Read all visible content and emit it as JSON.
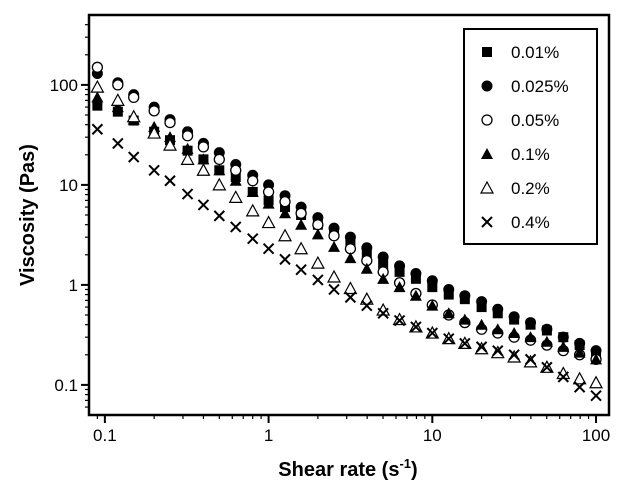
{
  "chart_data": {
    "type": "scatter",
    "xlabel": "Shear rate (s",
    "xlabel_superscript": "-1",
    "xlabel_suffix": ")",
    "ylabel": "Viscosity (Pas)",
    "xscale": "log",
    "yscale": "log",
    "xlim": [
      0.08,
      120
    ],
    "ylim": [
      0.05,
      500
    ],
    "x_ticks": [
      {
        "value": 0.1,
        "label": "0.1"
      },
      {
        "value": 1,
        "label": "1"
      },
      {
        "value": 10,
        "label": "10"
      },
      {
        "value": 100,
        "label": "100"
      }
    ],
    "y_ticks": [
      {
        "value": 0.1,
        "label": "0.1"
      },
      {
        "value": 1,
        "label": "1"
      },
      {
        "value": 10,
        "label": "10"
      },
      {
        "value": 100,
        "label": "100"
      }
    ],
    "legend_position": "top-right",
    "grid": false,
    "series": [
      {
        "name": "0.01%",
        "marker": "filled-square",
        "x": [
          0.09,
          0.12,
          0.15,
          0.2,
          0.25,
          0.32,
          0.4,
          0.5,
          0.63,
          0.8,
          1.0,
          1.26,
          1.58,
          2.0,
          2.51,
          3.16,
          3.98,
          5.01,
          6.31,
          7.94,
          10.0,
          12.6,
          15.8,
          20.0,
          25.1,
          31.6,
          39.8,
          50.1,
          63.1,
          79.4,
          100
        ],
        "y": [
          62,
          54,
          44,
          34,
          28,
          22,
          18,
          14,
          12,
          8.5,
          7,
          6,
          5,
          4,
          3.3,
          2.6,
          2.0,
          1.6,
          1.35,
          1.15,
          0.95,
          0.8,
          0.72,
          0.6,
          0.52,
          0.45,
          0.4,
          0.35,
          0.3,
          0.25,
          0.2
        ]
      },
      {
        "name": "0.025%",
        "marker": "filled-circle",
        "x": [
          0.09,
          0.12,
          0.15,
          0.2,
          0.25,
          0.32,
          0.4,
          0.5,
          0.63,
          0.8,
          1.0,
          1.26,
          1.58,
          2.0,
          2.51,
          3.16,
          3.98,
          5.01,
          6.31,
          7.94,
          10.0,
          12.6,
          15.8,
          20.0,
          25.1,
          31.6,
          39.8,
          50.1,
          63.1,
          79.4,
          100
        ],
        "y": [
          130,
          105,
          80,
          60,
          45,
          34,
          26,
          21,
          16,
          12.5,
          10,
          7.8,
          6,
          4.7,
          3.7,
          3.0,
          2.35,
          1.9,
          1.55,
          1.3,
          1.1,
          0.9,
          0.78,
          0.68,
          0.57,
          0.48,
          0.42,
          0.36,
          0.3,
          0.26,
          0.22
        ]
      },
      {
        "name": "0.05%",
        "marker": "open-circle",
        "x": [
          0.09,
          0.12,
          0.15,
          0.2,
          0.25,
          0.32,
          0.4,
          0.5,
          0.63,
          0.8,
          1.0,
          1.26,
          1.58,
          2.0,
          2.51,
          3.16,
          3.98,
          5.01,
          6.31,
          7.94,
          10.0,
          12.6,
          15.8,
          20.0,
          25.1,
          31.6,
          39.8,
          50.1,
          63.1,
          79.4,
          100
        ],
        "y": [
          150,
          100,
          75,
          55,
          42,
          31,
          24,
          18,
          14,
          11,
          8.5,
          6.8,
          5.2,
          4,
          3.1,
          2.3,
          1.75,
          1.35,
          1.05,
          0.82,
          0.63,
          0.5,
          0.42,
          0.36,
          0.33,
          0.3,
          0.28,
          0.25,
          0.22,
          0.2,
          0.18
        ]
      },
      {
        "name": "0.1%",
        "marker": "filled-triangle",
        "x": [
          0.09,
          0.12,
          0.15,
          0.2,
          0.25,
          0.32,
          0.4,
          0.5,
          0.63,
          0.8,
          1.0,
          1.26,
          1.58,
          2.0,
          2.51,
          3.16,
          3.98,
          5.01,
          6.31,
          7.94,
          10.0,
          12.6,
          15.8,
          20.0,
          25.1,
          31.6,
          39.8,
          50.1,
          63.1,
          79.4,
          100
        ],
        "y": [
          75,
          60,
          45,
          38,
          30,
          23,
          18,
          14,
          11,
          8.5,
          6.5,
          5.2,
          4,
          3.2,
          2.4,
          1.85,
          1.45,
          1.15,
          0.95,
          0.78,
          0.62,
          0.52,
          0.45,
          0.4,
          0.36,
          0.33,
          0.3,
          0.27,
          0.24,
          0.21,
          0.18
        ]
      },
      {
        "name": "0.2%",
        "marker": "open-triangle",
        "x": [
          0.09,
          0.12,
          0.15,
          0.2,
          0.25,
          0.32,
          0.4,
          0.5,
          0.63,
          0.8,
          1.0,
          1.26,
          1.58,
          2.0,
          2.51,
          3.16,
          3.98,
          5.01,
          6.31,
          7.94,
          10.0,
          12.6,
          15.8,
          20.0,
          25.1,
          31.6,
          39.8,
          50.1,
          63.1,
          79.4,
          100
        ],
        "y": [
          95,
          70,
          48,
          33,
          25,
          18,
          14,
          10,
          7.5,
          5.5,
          4.2,
          3.1,
          2.3,
          1.65,
          1.2,
          0.92,
          0.72,
          0.56,
          0.45,
          0.38,
          0.33,
          0.29,
          0.26,
          0.23,
          0.21,
          0.19,
          0.17,
          0.15,
          0.13,
          0.115,
          0.105
        ]
      },
      {
        "name": "0.4%",
        "marker": "cross",
        "x": [
          0.09,
          0.12,
          0.15,
          0.2,
          0.25,
          0.32,
          0.4,
          0.5,
          0.63,
          0.8,
          1.0,
          1.26,
          1.58,
          2.0,
          2.51,
          3.16,
          3.98,
          5.01,
          6.31,
          7.94,
          10.0,
          12.6,
          15.8,
          20.0,
          25.1,
          31.6,
          39.8,
          50.1,
          63.1,
          79.4,
          100
        ],
        "y": [
          36,
          26,
          19,
          14,
          11,
          8.1,
          6.3,
          4.9,
          3.8,
          2.9,
          2.3,
          1.8,
          1.42,
          1.12,
          0.9,
          0.75,
          0.62,
          0.52,
          0.44,
          0.38,
          0.33,
          0.29,
          0.26,
          0.24,
          0.22,
          0.2,
          0.18,
          0.15,
          0.12,
          0.095,
          0.078
        ]
      }
    ]
  }
}
